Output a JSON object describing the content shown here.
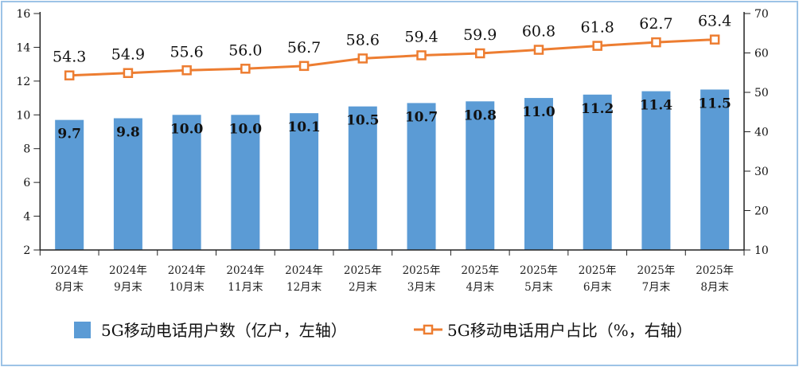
{
  "chart_data": {
    "type": "bar+line",
    "categories": [
      "2024年\n8月末",
      "2024年\n9月末",
      "2024年\n10月末",
      "2024年\n11月末",
      "2024年\n12月末",
      "2025年\n2月末",
      "2025年\n3月末",
      "2025年\n4月末",
      "2025年\n5月末",
      "2025年\n6月末",
      "2025年\n7月末",
      "2025年\n8月末"
    ],
    "series": [
      {
        "name": "5G移动电话用户数（亿户，左轴）",
        "type": "bar",
        "axis": "left",
        "color": "#5b9bd5",
        "values": [
          9.7,
          9.8,
          10.0,
          10.0,
          10.1,
          10.5,
          10.7,
          10.8,
          11.0,
          11.2,
          11.4,
          11.5
        ],
        "labels": [
          "9.7",
          "9.8",
          "10.0",
          "10.0",
          "10.1",
          "10.5",
          "10.7",
          "10.8",
          "11.0",
          "11.2",
          "11.4",
          "11.5"
        ]
      },
      {
        "name": "5G移动电话用户占比（%，右轴）",
        "type": "line",
        "axis": "right",
        "color": "#ed7d31",
        "values": [
          54.3,
          54.9,
          55.6,
          56.0,
          56.7,
          58.6,
          59.4,
          59.9,
          60.8,
          61.8,
          62.7,
          63.4
        ],
        "labels": [
          "54.3",
          "54.9",
          "55.6",
          "56.0",
          "56.7",
          "58.6",
          "59.4",
          "59.9",
          "60.8",
          "61.8",
          "62.7",
          "63.4"
        ]
      }
    ],
    "y_left": {
      "range": [
        2,
        16
      ],
      "ticks": [
        "2",
        "4",
        "6",
        "8",
        "10",
        "12",
        "14",
        "16"
      ]
    },
    "y_right": {
      "range": [
        10,
        70
      ],
      "ticks": [
        "10",
        "20",
        "30",
        "40",
        "50",
        "60",
        "70"
      ]
    },
    "grid": false,
    "legend": "bottom"
  }
}
